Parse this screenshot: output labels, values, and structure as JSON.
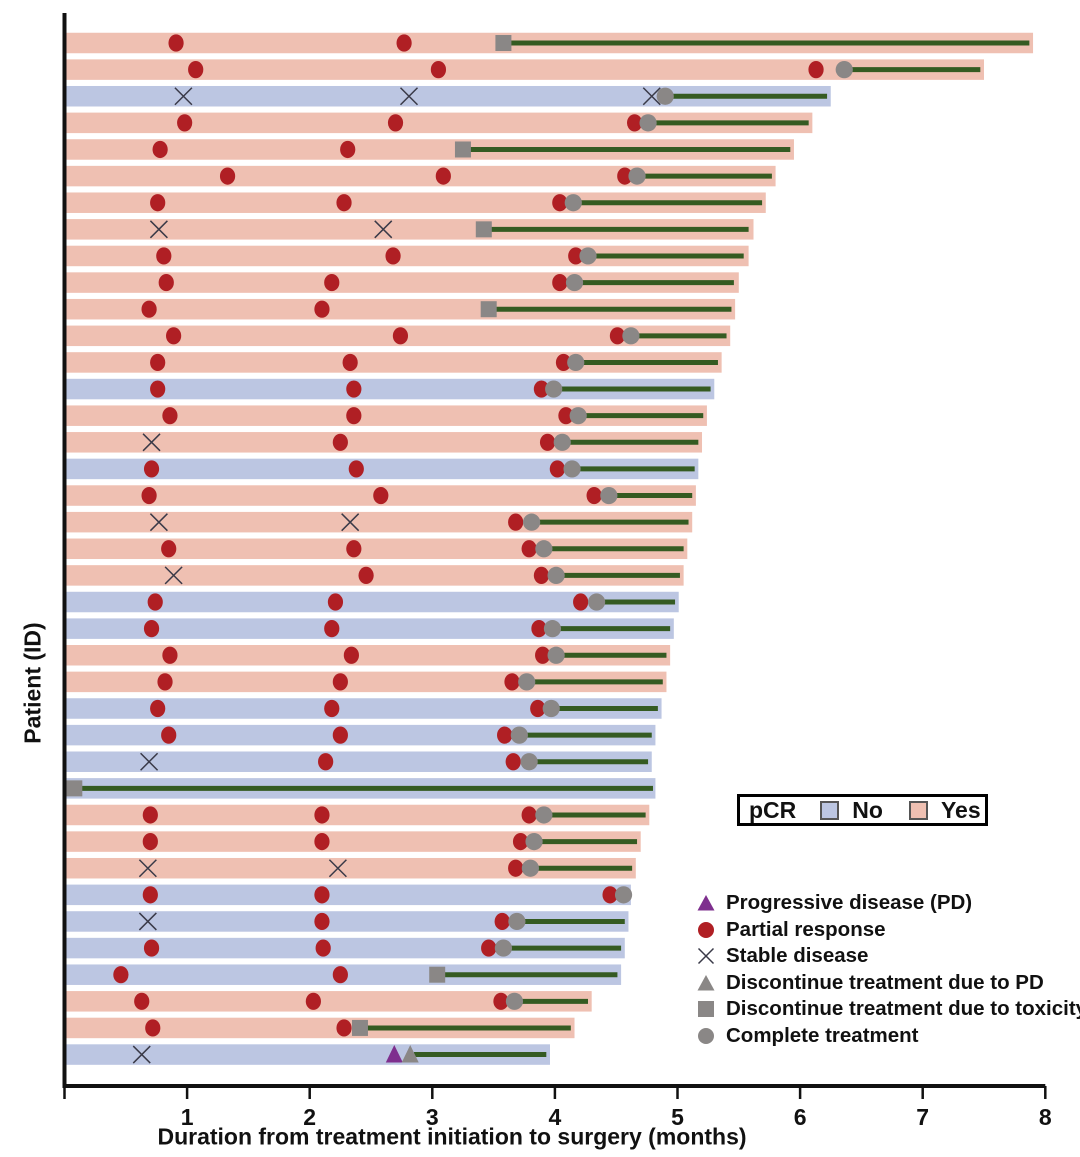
{
  "chart_data": {
    "type": "bar",
    "subtype": "swimmer-plot",
    "title": "",
    "xlabel": "Duration from treatment initiation to surgery (months)",
    "ylabel": "Patient (ID)",
    "xlim": [
      0,
      8
    ],
    "xticks": [
      1,
      2,
      3,
      4,
      5,
      6,
      7,
      8
    ],
    "grid": false,
    "legend_position": "right-bottom",
    "colors": {
      "pcr_yes": "#efc0b2",
      "pcr_no": "#bcc6e2",
      "partial_response": "#b01f24",
      "stable_disease": "#3a3a48",
      "progressive_disease": "#7e2f8e",
      "discontinue": "#8a8786",
      "complete": "#8a8786",
      "treatment_line": "#355b22",
      "axis": "#111111"
    },
    "marker_key": {
      "pr": "Partial response",
      "sd": "Stable disease",
      "pd": "Progressive disease (PD)",
      "dpd": "Discontinue treatment due to PD",
      "dtox": "Discontinue treatment due to toxicity",
      "ct": "Complete treatment"
    },
    "rows": [
      {
        "pcr": "Yes",
        "end": 7.9,
        "line": [
          3.58,
          7.87
        ],
        "markers": [
          [
            "pr",
            0.91
          ],
          [
            "pr",
            2.77
          ],
          [
            "dtox",
            3.58
          ]
        ]
      },
      {
        "pcr": "Yes",
        "end": 7.5,
        "line": [
          6.36,
          7.47
        ],
        "markers": [
          [
            "pr",
            1.07
          ],
          [
            "pr",
            3.05
          ],
          [
            "pr",
            6.13
          ],
          [
            "ct",
            6.36
          ]
        ]
      },
      {
        "pcr": "No",
        "end": 6.25,
        "line": [
          4.9,
          6.22
        ],
        "markers": [
          [
            "sd",
            0.97
          ],
          [
            "sd",
            2.81
          ],
          [
            "sd",
            4.79
          ],
          [
            "ct",
            4.9
          ]
        ]
      },
      {
        "pcr": "Yes",
        "end": 6.1,
        "line": [
          4.76,
          6.07
        ],
        "markers": [
          [
            "pr",
            0.98
          ],
          [
            "pr",
            2.7
          ],
          [
            "pr",
            4.65
          ],
          [
            "ct",
            4.76
          ]
        ]
      },
      {
        "pcr": "Yes",
        "end": 5.95,
        "line": [
          3.25,
          5.92
        ],
        "markers": [
          [
            "pr",
            0.78
          ],
          [
            "pr",
            2.31
          ],
          [
            "dtox",
            3.25
          ]
        ]
      },
      {
        "pcr": "Yes",
        "end": 5.8,
        "line": [
          4.67,
          5.77
        ],
        "markers": [
          [
            "pr",
            1.33
          ],
          [
            "pr",
            3.09
          ],
          [
            "pr",
            4.57
          ],
          [
            "ct",
            4.67
          ]
        ]
      },
      {
        "pcr": "Yes",
        "end": 5.72,
        "line": [
          4.15,
          5.69
        ],
        "markers": [
          [
            "pr",
            0.76
          ],
          [
            "pr",
            2.28
          ],
          [
            "pr",
            4.04
          ],
          [
            "ct",
            4.15
          ]
        ]
      },
      {
        "pcr": "Yes",
        "end": 5.62,
        "line": [
          3.42,
          5.58
        ],
        "markers": [
          [
            "sd",
            0.77
          ],
          [
            "sd",
            2.6
          ],
          [
            "dtox",
            3.42
          ]
        ]
      },
      {
        "pcr": "Yes",
        "end": 5.58,
        "line": [
          4.27,
          5.54
        ],
        "markers": [
          [
            "pr",
            0.81
          ],
          [
            "pr",
            2.68
          ],
          [
            "pr",
            4.17
          ],
          [
            "ct",
            4.27
          ]
        ]
      },
      {
        "pcr": "Yes",
        "end": 5.5,
        "line": [
          4.16,
          5.46
        ],
        "markers": [
          [
            "pr",
            0.83
          ],
          [
            "pr",
            2.18
          ],
          [
            "pr",
            4.04
          ],
          [
            "ct",
            4.16
          ]
        ]
      },
      {
        "pcr": "Yes",
        "end": 5.47,
        "line": [
          3.46,
          5.44
        ],
        "markers": [
          [
            "pr",
            0.69
          ],
          [
            "pr",
            2.1
          ],
          [
            "dtox",
            3.46
          ]
        ]
      },
      {
        "pcr": "Yes",
        "end": 5.43,
        "line": [
          4.62,
          5.4
        ],
        "markers": [
          [
            "pr",
            0.89
          ],
          [
            "pr",
            2.74
          ],
          [
            "pr",
            4.51
          ],
          [
            "ct",
            4.62
          ]
        ]
      },
      {
        "pcr": "Yes",
        "end": 5.36,
        "line": [
          4.17,
          5.33
        ],
        "markers": [
          [
            "pr",
            0.76
          ],
          [
            "pr",
            2.33
          ],
          [
            "pr",
            4.07
          ],
          [
            "ct",
            4.17
          ]
        ]
      },
      {
        "pcr": "No",
        "end": 5.3,
        "line": [
          3.99,
          5.27
        ],
        "markers": [
          [
            "pr",
            0.76
          ],
          [
            "pr",
            2.36
          ],
          [
            "pr",
            3.89
          ],
          [
            "ct",
            3.99
          ]
        ]
      },
      {
        "pcr": "Yes",
        "end": 5.24,
        "line": [
          4.19,
          5.21
        ],
        "markers": [
          [
            "pr",
            0.86
          ],
          [
            "pr",
            2.36
          ],
          [
            "pr",
            4.09
          ],
          [
            "ct",
            4.19
          ]
        ]
      },
      {
        "pcr": "Yes",
        "end": 5.2,
        "line": [
          4.06,
          5.17
        ],
        "markers": [
          [
            "sd",
            0.71
          ],
          [
            "pr",
            2.25
          ],
          [
            "pr",
            3.94
          ],
          [
            "ct",
            4.06
          ]
        ]
      },
      {
        "pcr": "No",
        "end": 5.17,
        "line": [
          4.14,
          5.14
        ],
        "markers": [
          [
            "pr",
            0.71
          ],
          [
            "pr",
            2.38
          ],
          [
            "pr",
            4.02
          ],
          [
            "ct",
            4.14
          ]
        ]
      },
      {
        "pcr": "Yes",
        "end": 5.15,
        "line": [
          4.44,
          5.12
        ],
        "markers": [
          [
            "pr",
            0.69
          ],
          [
            "pr",
            2.58
          ],
          [
            "pr",
            4.32
          ],
          [
            "ct",
            4.44
          ]
        ]
      },
      {
        "pcr": "Yes",
        "end": 5.12,
        "line": [
          3.81,
          5.09
        ],
        "markers": [
          [
            "sd",
            0.77
          ],
          [
            "sd",
            2.33
          ],
          [
            "pr",
            3.68
          ],
          [
            "ct",
            3.81
          ]
        ]
      },
      {
        "pcr": "Yes",
        "end": 5.08,
        "line": [
          3.91,
          5.05
        ],
        "markers": [
          [
            "pr",
            0.85
          ],
          [
            "pr",
            2.36
          ],
          [
            "pr",
            3.79
          ],
          [
            "ct",
            3.91
          ]
        ]
      },
      {
        "pcr": "Yes",
        "end": 5.05,
        "line": [
          4.01,
          5.02
        ],
        "markers": [
          [
            "sd",
            0.89
          ],
          [
            "pr",
            2.46
          ],
          [
            "pr",
            3.89
          ],
          [
            "ct",
            4.01
          ]
        ]
      },
      {
        "pcr": "No",
        "end": 5.01,
        "line": [
          4.34,
          4.98
        ],
        "markers": [
          [
            "pr",
            0.74
          ],
          [
            "pr",
            2.21
          ],
          [
            "pr",
            4.21
          ],
          [
            "ct",
            4.34
          ]
        ]
      },
      {
        "pcr": "No",
        "end": 4.97,
        "line": [
          3.98,
          4.94
        ],
        "markers": [
          [
            "pr",
            0.71
          ],
          [
            "pr",
            2.18
          ],
          [
            "pr",
            3.87
          ],
          [
            "ct",
            3.98
          ]
        ]
      },
      {
        "pcr": "Yes",
        "end": 4.94,
        "line": [
          4.01,
          4.91
        ],
        "markers": [
          [
            "pr",
            0.86
          ],
          [
            "pr",
            2.34
          ],
          [
            "pr",
            3.9
          ],
          [
            "ct",
            4.01
          ]
        ]
      },
      {
        "pcr": "Yes",
        "end": 4.91,
        "line": [
          3.77,
          4.88
        ],
        "markers": [
          [
            "pr",
            0.82
          ],
          [
            "pr",
            2.25
          ],
          [
            "pr",
            3.65
          ],
          [
            "ct",
            3.77
          ]
        ]
      },
      {
        "pcr": "No",
        "end": 4.87,
        "line": [
          3.97,
          4.84
        ],
        "markers": [
          [
            "pr",
            0.76
          ],
          [
            "pr",
            2.18
          ],
          [
            "pr",
            3.86
          ],
          [
            "ct",
            3.97
          ]
        ]
      },
      {
        "pcr": "No",
        "end": 4.82,
        "line": [
          3.71,
          4.79
        ],
        "markers": [
          [
            "pr",
            0.85
          ],
          [
            "pr",
            2.25
          ],
          [
            "pr",
            3.59
          ],
          [
            "ct",
            3.71
          ]
        ]
      },
      {
        "pcr": "No",
        "end": 4.79,
        "line": [
          3.79,
          4.76
        ],
        "markers": [
          [
            "sd",
            0.69
          ],
          [
            "pr",
            2.13
          ],
          [
            "pr",
            3.66
          ],
          [
            "ct",
            3.79
          ]
        ]
      },
      {
        "pcr": "No",
        "end": 4.82,
        "line": [
          0.12,
          4.8
        ],
        "markers": [
          [
            "dtox",
            0.08
          ]
        ]
      },
      {
        "pcr": "Yes",
        "end": 4.77,
        "line": [
          3.91,
          4.74
        ],
        "markers": [
          [
            "pr",
            0.7
          ],
          [
            "pr",
            2.1
          ],
          [
            "pr",
            3.79
          ],
          [
            "ct",
            3.91
          ]
        ]
      },
      {
        "pcr": "Yes",
        "end": 4.7,
        "line": [
          3.83,
          4.67
        ],
        "markers": [
          [
            "pr",
            0.7
          ],
          [
            "pr",
            2.1
          ],
          [
            "pr",
            3.72
          ],
          [
            "ct",
            3.83
          ]
        ]
      },
      {
        "pcr": "Yes",
        "end": 4.66,
        "line": [
          3.8,
          4.63
        ],
        "markers": [
          [
            "sd",
            0.68
          ],
          [
            "sd",
            2.23
          ],
          [
            "pr",
            3.68
          ],
          [
            "ct",
            3.8
          ]
        ]
      },
      {
        "pcr": "No",
        "end": 4.62,
        "line": null,
        "markers": [
          [
            "pr",
            0.7
          ],
          [
            "pr",
            2.1
          ],
          [
            "pr",
            4.45
          ],
          [
            "ct",
            4.56
          ]
        ]
      },
      {
        "pcr": "No",
        "end": 4.6,
        "line": [
          3.69,
          4.57
        ],
        "markers": [
          [
            "sd",
            0.68
          ],
          [
            "pr",
            2.1
          ],
          [
            "pr",
            3.57
          ],
          [
            "ct",
            3.69
          ]
        ]
      },
      {
        "pcr": "No",
        "end": 4.57,
        "line": [
          3.58,
          4.54
        ],
        "markers": [
          [
            "pr",
            0.71
          ],
          [
            "pr",
            2.11
          ],
          [
            "pr",
            3.46
          ],
          [
            "ct",
            3.58
          ]
        ]
      },
      {
        "pcr": "No",
        "end": 4.54,
        "line": [
          3.04,
          4.51
        ],
        "markers": [
          [
            "pr",
            0.46
          ],
          [
            "pr",
            2.25
          ],
          [
            "dtox",
            3.04
          ]
        ]
      },
      {
        "pcr": "Yes",
        "end": 4.3,
        "line": [
          3.67,
          4.27
        ],
        "markers": [
          [
            "pr",
            0.63
          ],
          [
            "pr",
            2.03
          ],
          [
            "pr",
            3.56
          ],
          [
            "ct",
            3.67
          ]
        ]
      },
      {
        "pcr": "Yes",
        "end": 4.16,
        "line": [
          2.41,
          4.13
        ],
        "markers": [
          [
            "pr",
            0.72
          ],
          [
            "pr",
            2.28
          ],
          [
            "dtox",
            2.41
          ]
        ]
      },
      {
        "pcr": "No",
        "end": 3.96,
        "line": [
          2.85,
          3.93
        ],
        "markers": [
          [
            "sd",
            0.63
          ],
          [
            "pd",
            2.69
          ],
          [
            "dpd",
            2.82
          ]
        ]
      }
    ]
  },
  "legend_pcr": {
    "title": "pCR",
    "items": [
      {
        "label": "No",
        "color": "#bcc6e2"
      },
      {
        "label": "Yes",
        "color": "#efc0b2"
      }
    ]
  },
  "legend_markers": {
    "items": [
      {
        "icon": "triangle",
        "color": "#7e2f8e",
        "label": "Progressive disease (PD)"
      },
      {
        "icon": "circle",
        "color": "#b01f24",
        "label": "Partial response"
      },
      {
        "icon": "x",
        "color": "#3a3a48",
        "label": "Stable disease"
      },
      {
        "icon": "triangle",
        "color": "#8a8786",
        "label": "Discontinue treatment due to PD"
      },
      {
        "icon": "square",
        "color": "#8a8786",
        "label": "Discontinue treatment due to toxicity"
      },
      {
        "icon": "circle",
        "color": "#8a8786",
        "label": "Complete treatment"
      }
    ]
  }
}
